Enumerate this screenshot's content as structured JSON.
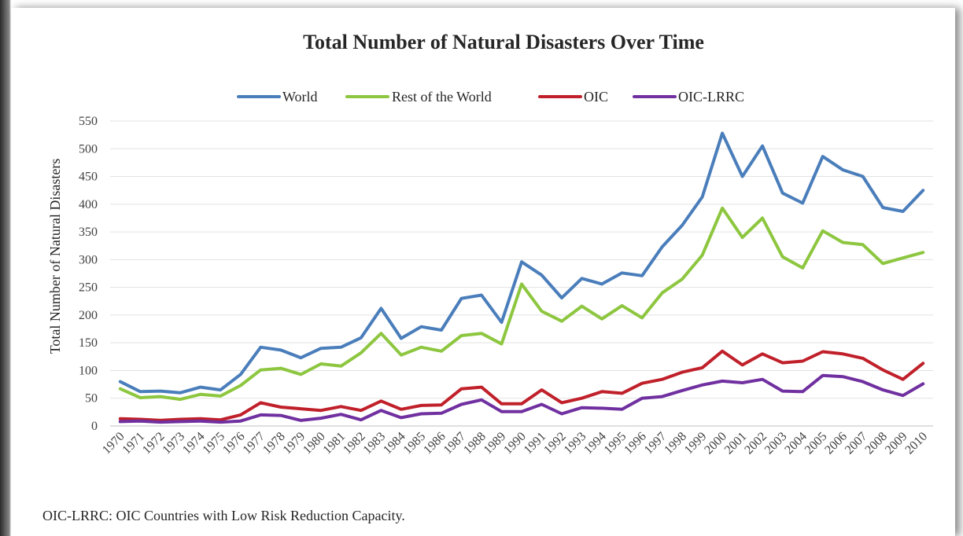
{
  "chart_data": {
    "type": "line",
    "title": "Total Number of Natural Disasters Over Time",
    "xlabel": "",
    "ylabel": "Total Number of Natural Disasters",
    "ylim": [
      0,
      550
    ],
    "yticks": [
      0,
      50,
      100,
      150,
      200,
      250,
      300,
      350,
      400,
      450,
      500,
      550
    ],
    "grid": "horizontal",
    "legend": "top-center",
    "x": [
      "1970",
      "1971",
      "1972",
      "1973",
      "1974",
      "1975",
      "1976",
      "1977",
      "1978",
      "1979",
      "1980",
      "1981",
      "1982",
      "1983",
      "1984",
      "1985",
      "1986",
      "1987",
      "1988",
      "1989",
      "1990",
      "1991",
      "1992",
      "1993",
      "1994",
      "1995",
      "1996",
      "1997",
      "1998",
      "1999",
      "2000",
      "2001",
      "2002",
      "2003",
      "2004",
      "2005",
      "2006",
      "2007",
      "2008",
      "2009",
      "2010"
    ],
    "series": [
      {
        "name": "World",
        "color": "#4a7ebb",
        "values": [
          80,
          62,
          63,
          60,
          70,
          65,
          93,
          142,
          137,
          123,
          140,
          142,
          159,
          212,
          158,
          179,
          173,
          230,
          236,
          187,
          296,
          272,
          231,
          266,
          256,
          276,
          271,
          323,
          362,
          413,
          528,
          450,
          505,
          420,
          402,
          486,
          462,
          450,
          394,
          387,
          425
        ]
      },
      {
        "name": "Rest of the World",
        "color": "#8dc63f",
        "values": [
          67,
          51,
          53,
          48,
          57,
          54,
          73,
          101,
          104,
          93,
          112,
          108,
          132,
          167,
          128,
          142,
          135,
          163,
          167,
          148,
          256,
          207,
          189,
          216,
          193,
          217,
          195,
          240,
          265,
          308,
          393,
          340,
          375,
          305,
          285,
          352,
          331,
          327,
          293,
          303,
          313
        ]
      },
      {
        "name": "OIC",
        "color": "#c0202a",
        "values": [
          13,
          12,
          10,
          12,
          13,
          11,
          20,
          42,
          34,
          31,
          28,
          35,
          28,
          45,
          30,
          37,
          38,
          67,
          70,
          40,
          40,
          65,
          42,
          50,
          62,
          59,
          77,
          84,
          97,
          105,
          135,
          110,
          130,
          114,
          117,
          134,
          130,
          122,
          101,
          84,
          113
        ]
      },
      {
        "name": "OIC-LRRC",
        "color": "#7030a0",
        "values": [
          8,
          9,
          7,
          8,
          9,
          7,
          9,
          20,
          19,
          10,
          14,
          21,
          11,
          28,
          15,
          22,
          23,
          39,
          47,
          26,
          26,
          39,
          22,
          33,
          32,
          30,
          50,
          53,
          64,
          74,
          81,
          78,
          84,
          63,
          62,
          91,
          89,
          80,
          65,
          55,
          76
        ]
      }
    ]
  },
  "footnote": "OIC-LRRC: OIC Countries with Low Risk Reduction Capacity."
}
